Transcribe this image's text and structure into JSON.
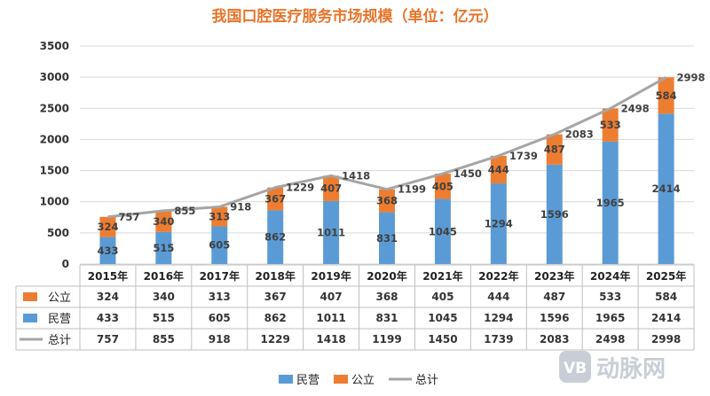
{
  "chart_data": {
    "type": "bar",
    "stacked": true,
    "title": "我国口腔医疗服务市场规模（单位：亿元）",
    "categories": [
      "2015年",
      "2016年",
      "2017年",
      "2018年",
      "2019年",
      "2020年",
      "2021年",
      "2022年",
      "2023年",
      "2024年",
      "2025年"
    ],
    "series": [
      {
        "name": "民营",
        "kind": "bar",
        "color": "#5b9bd5",
        "values": [
          433,
          515,
          605,
          862,
          1011,
          831,
          1045,
          1294,
          1596,
          1965,
          2414
        ]
      },
      {
        "name": "公立",
        "kind": "bar",
        "color": "#ed7d31",
        "values": [
          324,
          340,
          313,
          367,
          407,
          368,
          405,
          444,
          487,
          533,
          584
        ]
      },
      {
        "name": "总计",
        "kind": "line",
        "color": "#a5a5a5",
        "values": [
          757,
          855,
          918,
          1229,
          1418,
          1199,
          1450,
          1739,
          2083,
          2498,
          2998
        ]
      }
    ],
    "ylim": [
      0,
      3500
    ],
    "yticks": [
      0,
      500,
      1000,
      1500,
      2000,
      2500,
      3000,
      3500
    ],
    "gridlines": true,
    "legend_position": "bottom",
    "data_table_rows": [
      "公立",
      "民营",
      "总计"
    ]
  },
  "watermark": {
    "text": "动脉网",
    "badge": "VB"
  }
}
